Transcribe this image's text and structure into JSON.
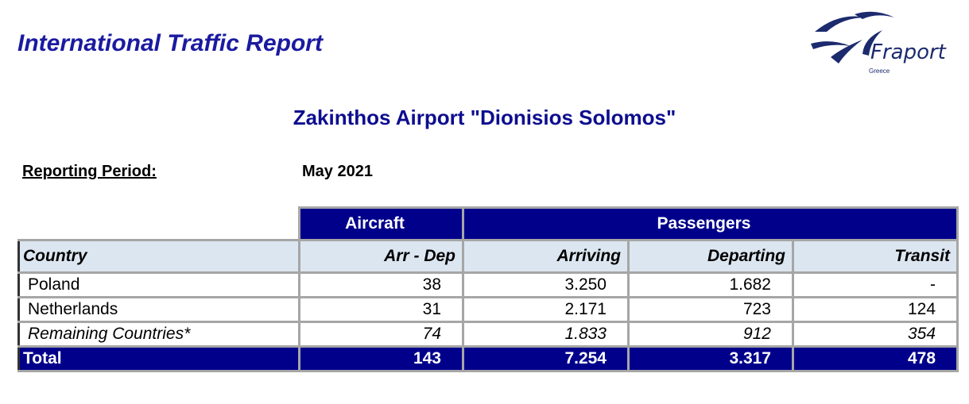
{
  "header": {
    "title": "International Traffic Report",
    "logo": {
      "name": "Fraport",
      "subtitle": "Greece"
    }
  },
  "airport": "Zakinthos Airport \"Dionisios Solomos\"",
  "reporting_period": {
    "label": "Reporting Period:",
    "value": "May 2021"
  },
  "table": {
    "groups": [
      "Aircraft",
      "Passengers"
    ],
    "columns": [
      "Country",
      "Arr - Dep",
      "Arriving",
      "Departing",
      "Transit"
    ],
    "rows": [
      [
        "Poland",
        "38",
        "3.250",
        "1.682",
        "-"
      ],
      [
        "Netherlands",
        "31",
        "2.171",
        "723",
        "124"
      ],
      [
        "Remaining Countries*",
        "74",
        "1.833",
        "912",
        "354"
      ]
    ],
    "total": [
      "Total",
      "143",
      "7.254",
      "3.317",
      "478"
    ]
  }
}
